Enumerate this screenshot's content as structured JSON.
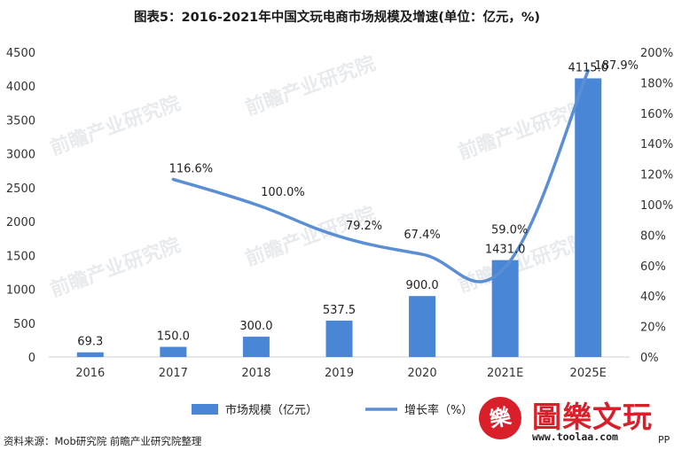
{
  "title": "图表5：2016-2021年中国文玩电商市场规模及增速(单位：亿元，%)",
  "source": "资料来源：Mob研究院 前瞻产业研究院整理",
  "watermark": "前瞻产业研究院",
  "brand": {
    "stamp": "樂",
    "name": "圖樂文玩",
    "url": "www.toolaa.com",
    "suffix": "PP"
  },
  "colors": {
    "bar": "#4a86d6",
    "line": "#5b8fd5",
    "axis_text": "#333333"
  },
  "chart_data": {
    "type": "bar",
    "title": "图表5：2016-2021年中国文玩电商市场规模及增速(单位：亿元，%)",
    "categories": [
      "2016",
      "2017",
      "2018",
      "2019",
      "2020",
      "2021E",
      "2025E"
    ],
    "series": [
      {
        "name": "市场规模（亿元）",
        "type": "bar",
        "axis": "left",
        "values": [
          69.3,
          150.0,
          300.0,
          537.5,
          900.0,
          1431.0,
          4115.0
        ],
        "labels": [
          "69.3",
          "150.0",
          "300.0",
          "537.5",
          "900.0",
          "1431.0",
          "4115.0"
        ]
      },
      {
        "name": "增长率（%）",
        "type": "line",
        "axis": "right",
        "values": [
          null,
          116.6,
          100.0,
          79.2,
          67.4,
          59.0,
          187.9
        ],
        "labels": [
          "",
          "116.6%",
          "100.0%",
          "79.2%",
          "67.4%",
          "59.0%",
          "187.9%"
        ]
      }
    ],
    "y_left": {
      "ylim": [
        0,
        4500
      ],
      "ticks": [
        0,
        500,
        1000,
        1500,
        2000,
        2500,
        3000,
        3500,
        4000,
        4500
      ],
      "tick_labels": [
        "0",
        "500",
        "1000",
        "1500",
        "2000",
        "2500",
        "3000",
        "3500",
        "4000",
        "4500"
      ]
    },
    "y_right": {
      "ylim": [
        0,
        200
      ],
      "ticks": [
        0,
        20,
        40,
        60,
        80,
        100,
        120,
        140,
        160,
        180,
        200
      ],
      "tick_labels": [
        "0%",
        "20%",
        "40%",
        "60%",
        "80%",
        "100%",
        "120%",
        "140%",
        "160%",
        "180%",
        "200%"
      ]
    },
    "grid": false,
    "legend": {
      "position": "bottom",
      "items": [
        "市场规模（亿元）",
        "增长率（%）"
      ]
    }
  }
}
